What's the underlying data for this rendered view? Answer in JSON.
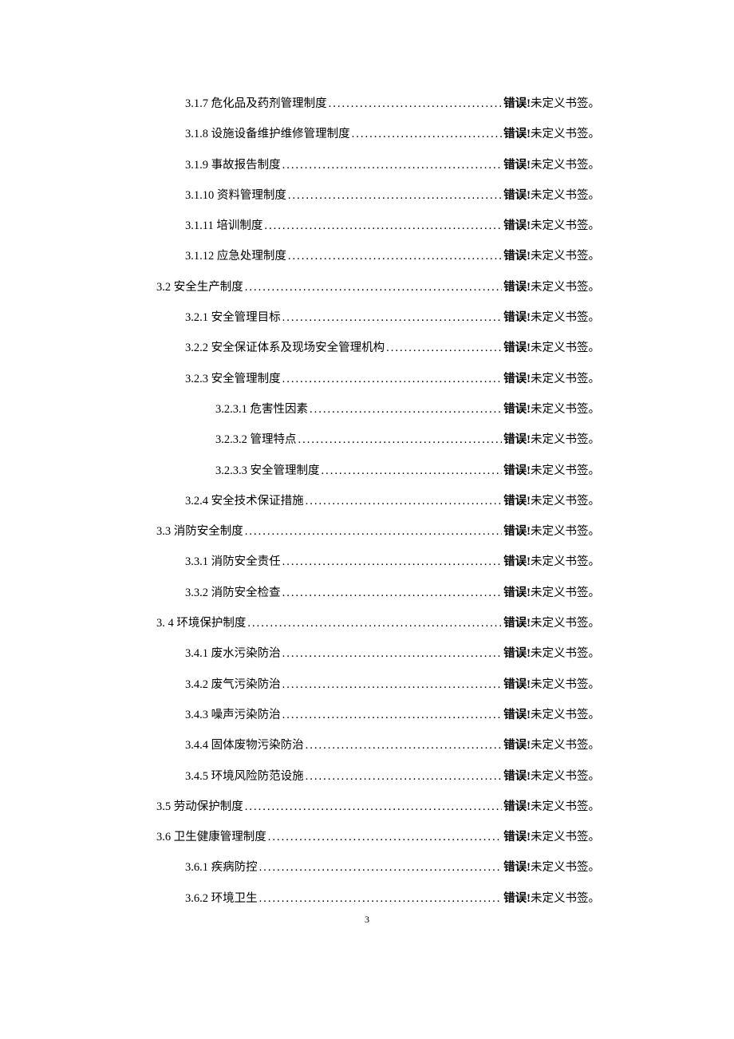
{
  "page_number": "3",
  "error_text_bold": "错误!",
  "error_text_rest": "未定义书签。",
  "toc": [
    {
      "level": 2,
      "num": "3.1.7",
      "title": "危化品及药剂管理制度"
    },
    {
      "level": 2,
      "num": "3.1.8",
      "title": "设施设备维护维修管理制度"
    },
    {
      "level": 2,
      "num": "3.1.9",
      "title": "事故报告制度"
    },
    {
      "level": 2,
      "num": "3.1.10",
      "title": "资料管理制度"
    },
    {
      "level": 2,
      "num": "3.1.11",
      "title": "培训制度"
    },
    {
      "level": 2,
      "num": "3.1.12",
      "title": "应急处理制度"
    },
    {
      "level": 1,
      "num": "3.2",
      "title": "安全生产制度"
    },
    {
      "level": 2,
      "num": "3.2.1",
      "title": "安全管理目标"
    },
    {
      "level": 2,
      "num": "3.2.2",
      "title": "安全保证体系及现场安全管理机构"
    },
    {
      "level": 2,
      "num": "3.2.3",
      "title": "安全管理制度"
    },
    {
      "level": 3,
      "num": "3.2.3.1",
      "title": "危害性因素"
    },
    {
      "level": 3,
      "num": "3.2.3.2",
      "title": "管理特点"
    },
    {
      "level": 3,
      "num": "3.2.3.3",
      "title": "安全管理制度"
    },
    {
      "level": 2,
      "num": "3.2.4",
      "title": "安全技术保证措施"
    },
    {
      "level": 1,
      "num": "3.3",
      "title": "消防安全制度"
    },
    {
      "level": 2,
      "num": "3.3.1",
      "title": "消防安全责任"
    },
    {
      "level": 2,
      "num": "3.3.2",
      "title": "消防安全检查"
    },
    {
      "level": 1,
      "num": "3. 4",
      "title": "环境保护制度"
    },
    {
      "level": 2,
      "num": "3.4.1",
      "title": "废水污染防治"
    },
    {
      "level": 2,
      "num": "3.4.2",
      "title": "废气污染防治"
    },
    {
      "level": 2,
      "num": "3.4.3",
      "title": "噪声污染防治"
    },
    {
      "level": 2,
      "num": "3.4.4",
      "title": "固体废物污染防治"
    },
    {
      "level": 2,
      "num": "3.4.5",
      "title": "环境风险防范设施"
    },
    {
      "level": 1,
      "num": "3.5",
      "title": "劳动保护制度"
    },
    {
      "level": 1,
      "num": "3.6",
      "title": "卫生健康管理制度"
    },
    {
      "level": 2,
      "num": "3.6.1",
      "title": "疾病防控"
    },
    {
      "level": 2,
      "num": "3.6.2",
      "title": "环境卫生"
    }
  ]
}
